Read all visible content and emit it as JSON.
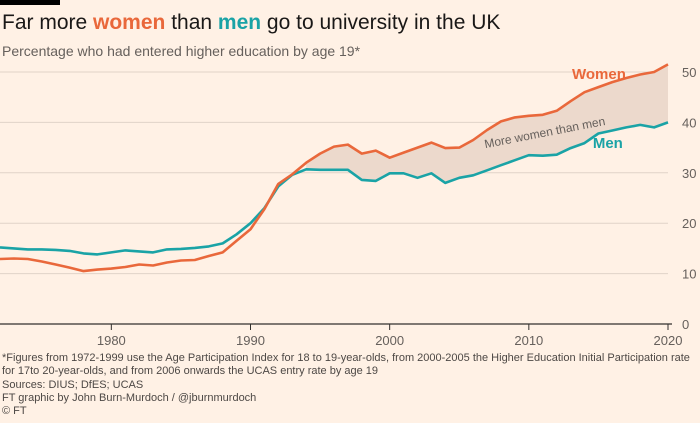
{
  "title": {
    "prefix": "Far more ",
    "women": "women",
    "middle": " than ",
    "men": "men",
    "suffix": " go to university in the UK"
  },
  "subtitle": "Percentage who had entered higher education by age 19*",
  "footnote": {
    "note": "*Figures from 1972-1999 use the Age Participation Index for 18 to 19-year-olds, from 2000-2005 the Higher Education Initial Participation rate for 17to 20-year-olds, and from 2006 onwards the UCAS entry rate by age 19",
    "sources": "Sources: DIUS; DfES; UCAS",
    "credit": "FT graphic by John Burn-Murdoch / @jburnmurdoch",
    "copyright": "© FT"
  },
  "colors": {
    "background": "#fff1e5",
    "women": "#e9683b",
    "men": "#1aa3a6",
    "gap_fill": "#ecd9cc",
    "grid": "#e0d3c8",
    "axis": "#33302e",
    "text": "#66605c"
  },
  "chart_data": {
    "type": "line",
    "title": "Far more women than men go to university in the UK",
    "subtitle": "Percentage who had entered higher education by age 19*",
    "xlabel": "",
    "ylabel": "",
    "xlim": [
      1972,
      2020
    ],
    "ylim": [
      0,
      50
    ],
    "x_ticks": [
      1980,
      1990,
      2000,
      2010,
      2020
    ],
    "y_ticks": [
      0,
      10,
      20,
      30,
      40,
      50
    ],
    "y_axis_side": "right",
    "grid": "horizontal",
    "legend": "direct labels near line ends",
    "x": [
      1972,
      1973,
      1974,
      1975,
      1976,
      1977,
      1978,
      1979,
      1980,
      1981,
      1982,
      1983,
      1984,
      1985,
      1986,
      1987,
      1988,
      1989,
      1990,
      1991,
      1992,
      1993,
      1994,
      1995,
      1996,
      1997,
      1998,
      1999,
      2000,
      2001,
      2002,
      2003,
      2004,
      2005,
      2006,
      2007,
      2008,
      2009,
      2010,
      2011,
      2012,
      2013,
      2014,
      2015,
      2016,
      2017,
      2018,
      2019,
      2020
    ],
    "series": [
      {
        "name": "Women",
        "values": [
          12.9,
          13.0,
          12.9,
          12.4,
          11.8,
          11.2,
          10.5,
          10.8,
          11.0,
          11.3,
          11.8,
          11.6,
          12.2,
          12.6,
          12.7,
          13.5,
          14.2,
          16.5,
          18.8,
          22.8,
          27.8,
          29.7,
          32.0,
          33.8,
          35.2,
          35.6,
          33.8,
          34.4,
          33.0,
          34.0,
          35.0,
          36.0,
          34.9,
          35.0,
          36.5,
          38.5,
          40.2,
          41.0,
          41.3,
          41.5,
          42.3,
          44.2,
          46.0,
          47.0,
          48.0,
          48.8,
          49.5,
          50.0,
          51.5
        ]
      },
      {
        "name": "Men",
        "values": [
          15.2,
          15.0,
          14.8,
          14.8,
          14.7,
          14.5,
          14.0,
          13.8,
          14.2,
          14.6,
          14.4,
          14.2,
          14.8,
          14.9,
          15.1,
          15.4,
          16.0,
          17.8,
          20.0,
          23.0,
          27.3,
          29.6,
          30.7,
          30.6,
          30.6,
          30.6,
          28.6,
          28.4,
          29.9,
          29.9,
          29.0,
          29.9,
          28.0,
          29.0,
          29.5,
          30.5,
          31.5,
          32.5,
          33.5,
          33.4,
          33.6,
          34.9,
          35.9,
          37.8,
          38.4,
          39.0,
          39.5,
          39.0,
          40.0
        ]
      }
    ],
    "annotations": [
      {
        "text": "Women",
        "series": "Women"
      },
      {
        "text": "Men",
        "series": "Men"
      },
      {
        "text": "More women than men",
        "note": "shaded gap between the lines"
      }
    ]
  }
}
